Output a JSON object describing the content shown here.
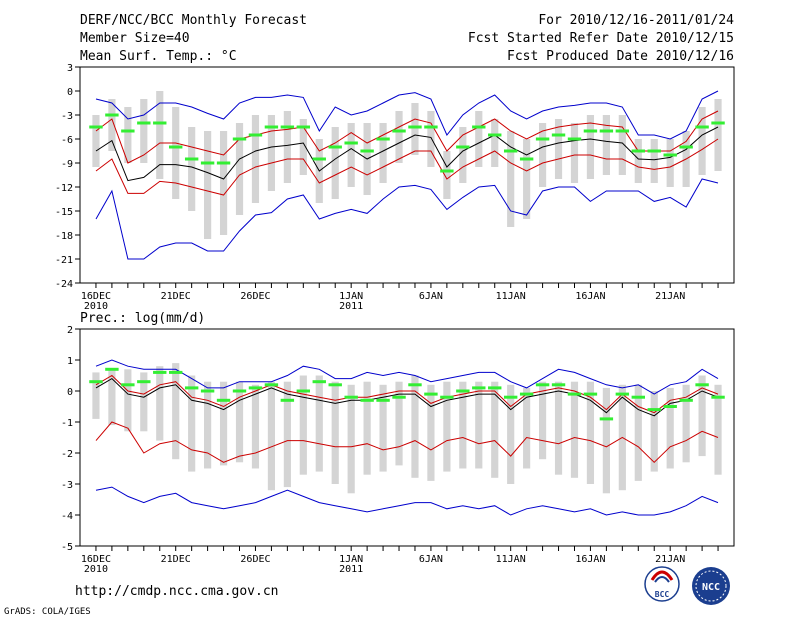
{
  "header": {
    "title": "DERF/NCC/BCC Monthly Forecast",
    "member_size": "Member Size=40",
    "variable": "Mean Surf. Temp.: °C",
    "period": "For 2010/12/16-2011/01/24",
    "started": "Fcst Started Refer Date 2010/12/15",
    "produced": "Fcst Produced Date 2010/12/16"
  },
  "footer": {
    "url": "http://cmdp.ncc.cma.gov.cn",
    "credit": "GrADS: COLA/IGES",
    "logo_left": "BCC",
    "logo_right": "NCC"
  },
  "colors": {
    "frame": "#000000",
    "bar": "#d4d4d4",
    "median": "#000000",
    "inner": "#cc0000",
    "outer": "#0000cc",
    "clim": "#33ee33"
  },
  "chart_data": [
    {
      "type": "line",
      "title": "Mean Surf. Temp.: °C",
      "x_tick_labels": [
        "16DEC",
        "21DEC",
        "26DEC",
        "1JAN",
        "6JAN",
        "11JAN",
        "16JAN",
        "21JAN"
      ],
      "x_tick_days": [
        1,
        6,
        11,
        17,
        22,
        27,
        32,
        37
      ],
      "x_year_labels": [
        {
          "day": 1,
          "label": "2010"
        },
        {
          "day": 17,
          "label": "2011"
        }
      ],
      "y_ticks": [
        3,
        0,
        -3,
        -6,
        -9,
        -12,
        -15,
        -18,
        -21,
        -24
      ],
      "ylim": [
        -24,
        3
      ],
      "days": [
        1,
        2,
        3,
        4,
        5,
        6,
        7,
        8,
        9,
        10,
        11,
        12,
        13,
        14,
        15,
        16,
        17,
        18,
        19,
        20,
        21,
        22,
        23,
        24,
        25,
        26,
        27,
        28,
        29,
        30,
        31,
        32,
        33,
        34,
        35,
        36,
        37,
        38,
        39,
        40
      ],
      "series": [
        {
          "name": "Ensemble median",
          "role": "median",
          "values": [
            -7.5,
            -6.2,
            -11.2,
            -10.8,
            -9.2,
            -9.2,
            -9.5,
            -10.2,
            -11.0,
            -8.5,
            -7.5,
            -7.0,
            -6.8,
            -6.5,
            -10.0,
            -8.5,
            -7.2,
            -8.5,
            -7.5,
            -6.5,
            -5.5,
            -5.8,
            -9.5,
            -7.5,
            -6.5,
            -5.5,
            -7.0,
            -8.0,
            -7.0,
            -6.5,
            -6.2,
            -6.0,
            -6.3,
            -6.5,
            -8.5,
            -8.6,
            -8.3,
            -7.3,
            -5.5,
            -4.5
          ]
        },
        {
          "name": "Upper inner",
          "role": "inner",
          "values": [
            -5.0,
            -3.5,
            -9.0,
            -8.0,
            -6.5,
            -6.5,
            -7.0,
            -7.5,
            -8.0,
            -6.0,
            -5.5,
            -5.0,
            -4.8,
            -4.5,
            -7.5,
            -6.5,
            -5.2,
            -6.5,
            -5.5,
            -4.5,
            -3.5,
            -4.0,
            -7.5,
            -5.5,
            -4.5,
            -3.5,
            -5.0,
            -6.0,
            -5.0,
            -4.5,
            -4.2,
            -4.0,
            -4.3,
            -4.5,
            -7.5,
            -7.5,
            -7.5,
            -6.3,
            -3.5,
            -2.5
          ]
        },
        {
          "name": "Lower inner",
          "role": "inner",
          "values": [
            -10.0,
            -8.5,
            -12.8,
            -12.8,
            -11.3,
            -11.5,
            -12.0,
            -12.5,
            -13.0,
            -10.5,
            -9.5,
            -9.0,
            -8.5,
            -8.5,
            -11.5,
            -10.5,
            -9.5,
            -10.5,
            -9.5,
            -8.5,
            -7.5,
            -7.5,
            -11.0,
            -9.5,
            -8.5,
            -7.5,
            -9.0,
            -10.0,
            -9.0,
            -8.5,
            -8.0,
            -8.0,
            -8.5,
            -8.5,
            -9.5,
            -9.8,
            -9.5,
            -8.5,
            -7.3,
            -6.0
          ]
        },
        {
          "name": "Maximum",
          "role": "outer",
          "values": [
            -1.0,
            -1.5,
            -3.5,
            -3.0,
            -1.5,
            -1.5,
            -2.0,
            -2.8,
            -3.5,
            -1.5,
            -0.8,
            -0.8,
            -0.5,
            -0.8,
            -5.0,
            -2.0,
            -3.0,
            -2.5,
            -1.5,
            -0.5,
            -0.2,
            -1.0,
            -5.5,
            -3.0,
            -1.5,
            -0.5,
            -2.5,
            -3.5,
            -2.5,
            -2.0,
            -1.8,
            -1.5,
            -1.5,
            -2.0,
            -5.5,
            -5.5,
            -6.0,
            -5.0,
            -1.0,
            0.0
          ]
        },
        {
          "name": "Minimum",
          "role": "outer",
          "values": [
            -16.0,
            -12.5,
            -21.0,
            -21.0,
            -19.5,
            -19.0,
            -19.0,
            -20.0,
            -20.0,
            -17.5,
            -15.5,
            -15.2,
            -13.5,
            -13.0,
            -16.0,
            -15.3,
            -14.8,
            -15.3,
            -13.5,
            -12.0,
            -11.8,
            -12.3,
            -14.8,
            -13.3,
            -12.0,
            -11.8,
            -15.0,
            -15.5,
            -12.5,
            -12.0,
            -12.0,
            -13.8,
            -12.5,
            -12.5,
            -12.5,
            -13.8,
            -13.3,
            -14.5,
            -11.0,
            -11.5
          ]
        },
        {
          "name": "Climatology",
          "role": "clim",
          "values": [
            -4.5,
            -3.0,
            -5.0,
            -4.0,
            -4.0,
            -7.0,
            -8.5,
            -9.0,
            -9.0,
            -6.0,
            -5.5,
            -4.5,
            -4.5,
            -4.5,
            -8.5,
            -7.0,
            -6.5,
            -7.5,
            -6.0,
            -5.0,
            -4.5,
            -4.5,
            -10.0,
            -7.0,
            -4.5,
            -5.5,
            -7.5,
            -8.5,
            -6.0,
            -5.5,
            -6.0,
            -5.0,
            -5.0,
            -5.0,
            -7.5,
            -7.5,
            -8.0,
            -7.0,
            -4.5,
            -4.0
          ]
        },
        {
          "name": "Ensemble bar top",
          "role": "bar_top",
          "values": [
            -3.0,
            -1.0,
            -2.0,
            -1.0,
            0.0,
            -2.0,
            -4.5,
            -5.0,
            -5.0,
            -4.0,
            -3.0,
            -3.0,
            -2.5,
            -3.5,
            -6.0,
            -4.5,
            -4.0,
            -4.0,
            -4.0,
            -2.5,
            -1.5,
            -2.5,
            -7.5,
            -4.5,
            -2.5,
            -3.5,
            -5.0,
            -6.0,
            -4.0,
            -3.5,
            -4.0,
            -3.0,
            -3.0,
            -3.0,
            -6.0,
            -6.0,
            -6.0,
            -5.0,
            -2.0,
            -1.0
          ]
        },
        {
          "name": "Ensemble bar bottom",
          "role": "bar_bottom",
          "values": [
            -9.5,
            -7.5,
            -9.0,
            -9.0,
            -11.0,
            -13.5,
            -15.0,
            -18.5,
            -18.0,
            -15.5,
            -14.0,
            -12.5,
            -11.5,
            -10.5,
            -14.0,
            -13.5,
            -12.0,
            -13.0,
            -11.5,
            -9.0,
            -8.0,
            -9.5,
            -13.5,
            -11.5,
            -9.5,
            -9.5,
            -17.0,
            -16.0,
            -12.0,
            -11.0,
            -11.5,
            -11.0,
            -10.5,
            -10.5,
            -11.5,
            -11.5,
            -12.0,
            -12.0,
            -10.5,
            -10.0
          ]
        }
      ]
    },
    {
      "type": "line",
      "title": "Prec.: log(mm/d)",
      "x_tick_labels": [
        "16DEC",
        "21DEC",
        "26DEC",
        "1JAN",
        "6JAN",
        "11JAN",
        "16JAN",
        "21JAN"
      ],
      "x_tick_days": [
        1,
        6,
        11,
        17,
        22,
        27,
        32,
        37
      ],
      "x_year_labels": [
        {
          "day": 1,
          "label": "2010"
        },
        {
          "day": 17,
          "label": "2011"
        }
      ],
      "y_ticks": [
        2,
        1,
        0,
        -1,
        -2,
        -3,
        -4,
        -5
      ],
      "ylim": [
        -5,
        2
      ],
      "days": [
        1,
        2,
        3,
        4,
        5,
        6,
        7,
        8,
        9,
        10,
        11,
        12,
        13,
        14,
        15,
        16,
        17,
        18,
        19,
        20,
        21,
        22,
        23,
        24,
        25,
        26,
        27,
        28,
        29,
        30,
        31,
        32,
        33,
        34,
        35,
        36,
        37,
        38,
        39,
        40
      ],
      "series": [
        {
          "name": "Ensemble median",
          "role": "median",
          "values": [
            0.1,
            0.4,
            -0.1,
            -0.2,
            0.1,
            0.2,
            -0.3,
            -0.4,
            -0.6,
            -0.3,
            -0.1,
            0.1,
            -0.1,
            -0.2,
            -0.3,
            -0.4,
            -0.3,
            -0.3,
            -0.2,
            -0.1,
            -0.1,
            -0.5,
            -0.3,
            -0.2,
            -0.1,
            -0.1,
            -0.6,
            -0.2,
            -0.1,
            0.0,
            -0.1,
            -0.3,
            -0.7,
            -0.2,
            -0.6,
            -0.8,
            -0.4,
            -0.3,
            0.0,
            -0.2
          ]
        },
        {
          "name": "Upper inner",
          "role": "inner",
          "values": [
            0.2,
            0.5,
            0.0,
            -0.1,
            0.2,
            0.3,
            -0.2,
            -0.3,
            -0.5,
            -0.2,
            0.0,
            0.2,
            0.0,
            -0.1,
            -0.2,
            -0.3,
            -0.2,
            -0.2,
            -0.1,
            0.0,
            0.0,
            -0.4,
            -0.2,
            -0.1,
            0.0,
            0.0,
            -0.5,
            -0.1,
            0.0,
            0.1,
            0.0,
            -0.2,
            -0.6,
            -0.1,
            -0.5,
            -0.7,
            -0.3,
            -0.2,
            0.1,
            -0.1
          ]
        },
        {
          "name": "Lower inner",
          "role": "inner",
          "values": [
            -1.6,
            -1.0,
            -1.2,
            -2.0,
            -1.7,
            -1.6,
            -1.9,
            -2.0,
            -2.3,
            -2.1,
            -2.0,
            -1.8,
            -1.6,
            -1.6,
            -1.7,
            -1.8,
            -1.8,
            -1.7,
            -1.9,
            -1.8,
            -1.6,
            -1.9,
            -1.6,
            -1.5,
            -1.7,
            -1.6,
            -2.1,
            -1.5,
            -1.6,
            -1.7,
            -1.5,
            -1.6,
            -1.8,
            -1.5,
            -1.8,
            -2.3,
            -1.8,
            -1.6,
            -1.3,
            -1.5
          ]
        },
        {
          "name": "Maximum",
          "role": "outer",
          "values": [
            0.8,
            1.0,
            0.8,
            0.7,
            0.7,
            0.7,
            0.4,
            0.1,
            0.1,
            0.3,
            0.3,
            0.3,
            0.5,
            0.8,
            0.7,
            0.4,
            0.4,
            0.6,
            0.5,
            0.6,
            0.5,
            0.3,
            0.4,
            0.5,
            0.6,
            0.6,
            0.3,
            0.1,
            0.4,
            0.7,
            0.6,
            0.4,
            0.2,
            0.1,
            0.2,
            -0.1,
            0.2,
            0.3,
            0.7,
            0.4
          ]
        },
        {
          "name": "Minimum",
          "role": "outer",
          "values": [
            -3.2,
            -3.1,
            -3.4,
            -3.6,
            -3.4,
            -3.3,
            -3.6,
            -3.7,
            -3.8,
            -3.7,
            -3.6,
            -3.4,
            -3.2,
            -3.4,
            -3.6,
            -3.7,
            -3.8,
            -3.9,
            -3.8,
            -3.7,
            -3.6,
            -3.6,
            -3.8,
            -3.7,
            -3.8,
            -3.7,
            -4.0,
            -3.8,
            -3.7,
            -3.8,
            -3.9,
            -3.8,
            -4.0,
            -3.9,
            -4.0,
            -4.0,
            -3.9,
            -3.7,
            -3.4,
            -3.6
          ]
        },
        {
          "name": "Climatology",
          "role": "clim",
          "values": [
            0.3,
            0.7,
            0.2,
            0.3,
            0.6,
            0.6,
            0.1,
            0.0,
            -0.3,
            0.0,
            0.1,
            0.2,
            -0.3,
            0.0,
            0.3,
            0.2,
            -0.2,
            -0.3,
            -0.3,
            -0.2,
            0.2,
            -0.1,
            -0.2,
            0.0,
            0.1,
            0.1,
            -0.2,
            -0.1,
            0.2,
            0.2,
            -0.1,
            -0.1,
            -0.9,
            -0.1,
            -0.2,
            -0.6,
            -0.5,
            -0.3,
            0.2,
            -0.2
          ]
        },
        {
          "name": "Ensemble bar top",
          "role": "bar_top",
          "values": [
            0.6,
            0.7,
            0.7,
            0.6,
            0.8,
            0.9,
            0.5,
            0.3,
            0.3,
            0.3,
            0.2,
            0.3,
            0.3,
            0.5,
            0.5,
            0.3,
            0.2,
            0.3,
            0.2,
            0.3,
            0.5,
            0.2,
            0.3,
            0.3,
            0.3,
            0.3,
            0.2,
            0.1,
            0.3,
            0.3,
            0.3,
            0.3,
            0.1,
            0.2,
            0.2,
            0.0,
            0.1,
            0.2,
            0.5,
            0.2
          ]
        },
        {
          "name": "Ensemble bar bottom",
          "role": "bar_bottom",
          "values": [
            -0.9,
            -1.1,
            -1.3,
            -1.3,
            -1.6,
            -2.2,
            -2.6,
            -2.5,
            -2.4,
            -2.3,
            -2.5,
            -3.2,
            -3.1,
            -2.7,
            -2.6,
            -3.0,
            -3.3,
            -2.7,
            -2.6,
            -2.4,
            -2.8,
            -2.9,
            -2.6,
            -2.5,
            -2.5,
            -2.8,
            -3.0,
            -2.5,
            -2.2,
            -2.7,
            -2.8,
            -3.0,
            -3.3,
            -3.2,
            -2.9,
            -2.6,
            -2.5,
            -2.3,
            -2.1,
            -2.7
          ]
        }
      ]
    }
  ]
}
